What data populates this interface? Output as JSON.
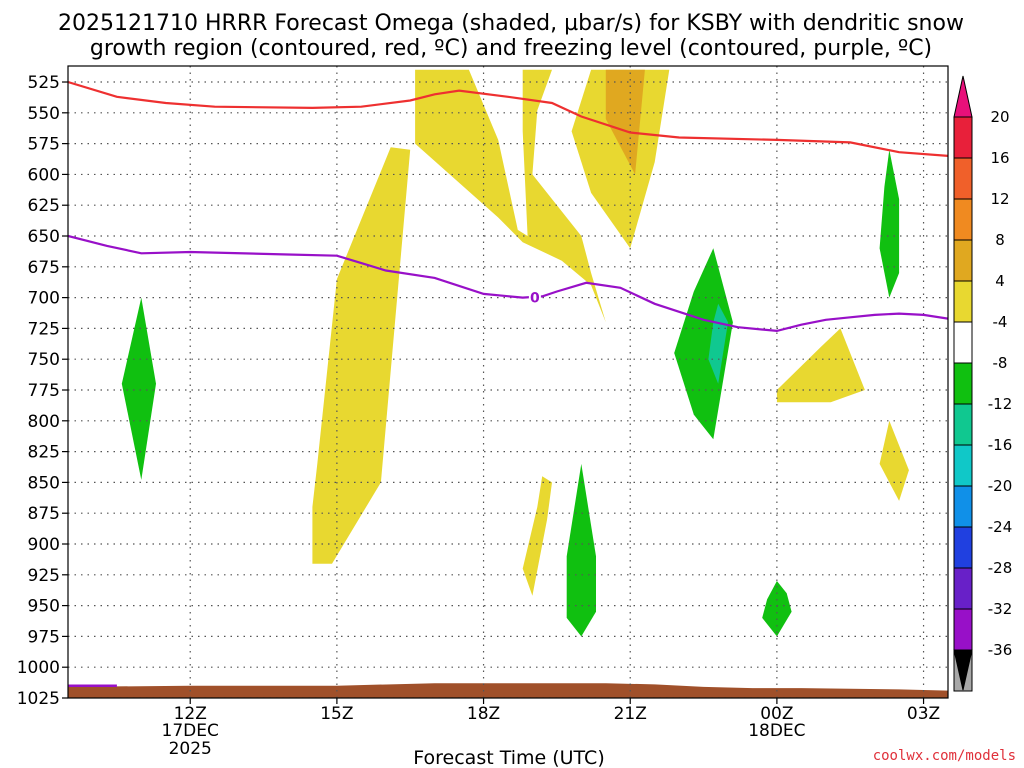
{
  "chart_data": {
    "type": "contour-timeheight",
    "title_line1": "2025121710 HRRR Forecast Omega (shaded, µbar/s) for KSBY with dendritic snow",
    "title_line2": "growth region (contoured, red, ºC) and freezing level (contoured, purple, ºC)",
    "xlabel": "Forecast Time (UTC)",
    "credit": "coolwx.com/models",
    "x_units": "hours since 2025-12-17 00Z",
    "xlim": [
      9.5,
      27.5
    ],
    "ylim": [
      1025,
      512
    ],
    "pressure_levels": [
      "525",
      "550",
      "575",
      "600",
      "625",
      "650",
      "675",
      "700",
      "725",
      "750",
      "775",
      "800",
      "825",
      "850",
      "875",
      "900",
      "925",
      "950",
      "975",
      "1000",
      "1025"
    ],
    "x_ticks": [
      {
        "x": 12,
        "label": "12Z",
        "sub1": "17DEC",
        "sub2": "2025"
      },
      {
        "x": 15,
        "label": "15Z",
        "sub1": "",
        "sub2": ""
      },
      {
        "x": 18,
        "label": "18Z",
        "sub1": "",
        "sub2": ""
      },
      {
        "x": 21,
        "label": "21Z",
        "sub1": "",
        "sub2": ""
      },
      {
        "x": 24,
        "label": "00Z",
        "sub1": "18DEC",
        "sub2": ""
      },
      {
        "x": 27,
        "label": "03Z",
        "sub1": "",
        "sub2": ""
      }
    ],
    "colorbar": {
      "labels": [
        "20",
        "16",
        "12",
        "8",
        "4",
        "-4",
        "-8",
        "-12",
        "-16",
        "-20",
        "-24",
        "-28",
        "-32",
        "-36"
      ],
      "colors": [
        "#e8203a",
        "#f0602a",
        "#f08a20",
        "#e0a820",
        "#e8d830",
        "#ffffff",
        "#10c010",
        "#10c890",
        "#10c8c8",
        "#1090e8",
        "#2040e0",
        "#6820c8",
        "#9810c8",
        "#a8a8a8"
      ],
      "top_arrow": "#e8107a",
      "bottom_arrow": "#000000"
    },
    "freezing_level_label": "0",
    "freezing_level_color": "#9810c8",
    "dgz_color": "#ee3030",
    "ground_color": "#a0502a",
    "omega_regions": [
      {
        "label": "4-8",
        "color": "#e8d830",
        "pts": [
          [
            16.6,
            515
          ],
          [
            17.7,
            515
          ],
          [
            18.3,
            572
          ],
          [
            18.7,
            645
          ],
          [
            18.9,
            650
          ],
          [
            18.8,
            565
          ],
          [
            18.8,
            515
          ],
          [
            19.4,
            515
          ],
          [
            19.1,
            548
          ],
          [
            19.0,
            600
          ],
          [
            20.0,
            650
          ],
          [
            20.2,
            680
          ],
          [
            20.5,
            720
          ],
          [
            20.2,
            690
          ],
          [
            19.6,
            670
          ],
          [
            18.8,
            655
          ],
          [
            18.3,
            635
          ],
          [
            16.6,
            575
          ]
        ]
      },
      {
        "label": "4-8",
        "color": "#e8d830",
        "pts": [
          [
            20.2,
            515
          ],
          [
            21.8,
            515
          ],
          [
            21.5,
            590
          ],
          [
            21.0,
            660
          ],
          [
            20.2,
            615
          ],
          [
            19.8,
            565
          ]
        ]
      },
      {
        "label": "8-12",
        "color": "#e0a820",
        "pts": [
          [
            20.5,
            515
          ],
          [
            21.3,
            515
          ],
          [
            21.1,
            600
          ],
          [
            20.5,
            555
          ]
        ]
      },
      {
        "label": "4-8",
        "color": "#e8d830",
        "pts": [
          [
            16.1,
            578
          ],
          [
            16.5,
            580
          ],
          [
            15.9,
            850
          ],
          [
            14.9,
            916
          ],
          [
            14.5,
            916
          ],
          [
            14.5,
            870
          ],
          [
            14.6,
            835
          ],
          [
            15.0,
            685
          ]
        ]
      },
      {
        "label": "4-8",
        "color": "#e8d830",
        "pts": [
          [
            19.1,
            870
          ],
          [
            19.2,
            845
          ],
          [
            19.4,
            850
          ],
          [
            19.3,
            880
          ],
          [
            19.0,
            942
          ],
          [
            18.8,
            920
          ]
        ]
      },
      {
        "label": "4-8",
        "color": "#e8d830",
        "pts": [
          [
            24.0,
            775
          ],
          [
            24.9,
            740
          ],
          [
            25.3,
            725
          ],
          [
            25.8,
            775
          ],
          [
            25.1,
            785
          ],
          [
            24.0,
            785
          ]
        ]
      },
      {
        "label": "4-8",
        "color": "#e8d830",
        "pts": [
          [
            26.3,
            800
          ],
          [
            26.1,
            835
          ],
          [
            26.5,
            865
          ],
          [
            26.7,
            840
          ]
        ]
      },
      {
        "label": "-4 to -8",
        "color": "#10c010",
        "pts": [
          [
            11.0,
            700
          ],
          [
            11.3,
            770
          ],
          [
            11.0,
            848
          ],
          [
            10.6,
            770
          ]
        ]
      },
      {
        "label": "-4 to -8",
        "color": "#10c010",
        "pts": [
          [
            22.7,
            660
          ],
          [
            23.1,
            720
          ],
          [
            22.7,
            815
          ],
          [
            22.3,
            795
          ],
          [
            21.9,
            745
          ],
          [
            22.3,
            695
          ]
        ]
      },
      {
        "label": "-8 to -12",
        "color": "#10c890",
        "pts": [
          [
            22.8,
            705
          ],
          [
            23.0,
            720
          ],
          [
            22.8,
            770
          ],
          [
            22.6,
            750
          ],
          [
            22.7,
            720
          ]
        ]
      },
      {
        "label": "-4 to -8",
        "color": "#10c010",
        "pts": [
          [
            20.0,
            835
          ],
          [
            20.3,
            910
          ],
          [
            20.3,
            955
          ],
          [
            20.0,
            975
          ],
          [
            19.7,
            960
          ],
          [
            19.7,
            910
          ]
        ]
      },
      {
        "label": "-4 to -8",
        "color": "#10c010",
        "pts": [
          [
            24.0,
            930
          ],
          [
            24.2,
            940
          ],
          [
            24.3,
            955
          ],
          [
            24.0,
            975
          ],
          [
            23.7,
            960
          ],
          [
            23.8,
            945
          ]
        ]
      },
      {
        "label": "-4 to -8",
        "color": "#10c010",
        "pts": [
          [
            26.3,
            580
          ],
          [
            26.5,
            620
          ],
          [
            26.5,
            680
          ],
          [
            26.3,
            700
          ],
          [
            26.1,
            660
          ],
          [
            26.2,
            610
          ]
        ]
      }
    ],
    "dgz_line": [
      [
        9.5,
        525
      ],
      [
        10.5,
        537
      ],
      [
        11.5,
        542
      ],
      [
        12.5,
        545
      ],
      [
        14.5,
        546
      ],
      [
        15.5,
        545
      ],
      [
        16.5,
        540
      ],
      [
        17.0,
        535
      ],
      [
        17.5,
        532
      ],
      [
        18.5,
        537
      ],
      [
        19.4,
        542
      ],
      [
        20.0,
        553
      ],
      [
        21.0,
        566
      ],
      [
        22.0,
        570
      ],
      [
        24.0,
        572
      ],
      [
        25.5,
        574
      ],
      [
        26.5,
        582
      ],
      [
        27.5,
        585
      ]
    ],
    "freezing_line": [
      [
        9.5,
        650
      ],
      [
        10.3,
        658
      ],
      [
        11.0,
        664
      ],
      [
        12.0,
        663
      ],
      [
        14.0,
        665
      ],
      [
        15.0,
        666
      ],
      [
        15.5,
        672
      ],
      [
        16.0,
        678
      ],
      [
        17.0,
        684
      ],
      [
        18.0,
        697
      ],
      [
        18.8,
        700
      ],
      [
        19.2,
        699
      ],
      [
        19.5,
        695
      ],
      [
        20.1,
        688
      ],
      [
        20.8,
        692
      ],
      [
        21.5,
        705
      ],
      [
        22.5,
        718
      ],
      [
        23.2,
        724
      ],
      [
        24.0,
        727
      ],
      [
        24.5,
        722
      ],
      [
        25.0,
        718
      ],
      [
        25.5,
        716
      ],
      [
        26.0,
        714
      ],
      [
        26.5,
        713
      ],
      [
        27.0,
        714
      ],
      [
        27.5,
        717
      ]
    ],
    "ground_top": [
      [
        9.5,
        1016
      ],
      [
        12.0,
        1015
      ],
      [
        15.0,
        1015
      ],
      [
        17.0,
        1013
      ],
      [
        18.5,
        1013
      ],
      [
        20.5,
        1013
      ],
      [
        21.5,
        1014
      ],
      [
        22.5,
        1016
      ],
      [
        23.5,
        1017
      ],
      [
        24.5,
        1017
      ],
      [
        26.5,
        1018
      ],
      [
        27.5,
        1019
      ]
    ],
    "freezing_surface_stub": [
      [
        9.5,
        1015
      ],
      [
        10.5,
        1015
      ]
    ]
  }
}
